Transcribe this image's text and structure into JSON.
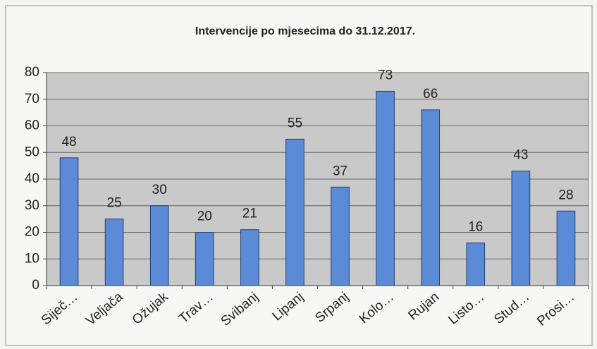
{
  "chart_data": {
    "type": "bar",
    "title": "Intervencije po mjesecima do 31.12.2017.",
    "categories": [
      "Siječ…",
      "Veljača",
      "Ožujak",
      "Trav…",
      "Svibanj",
      "Lipanj",
      "Srpanj",
      "Kolo…",
      "Rujan",
      "Listo…",
      "Stud…",
      "Prosi…"
    ],
    "values": [
      48,
      25,
      30,
      20,
      21,
      55,
      37,
      73,
      66,
      16,
      43,
      28
    ],
    "color": "#5b8ad6",
    "ylim": [
      0,
      80
    ],
    "yticks": [
      0,
      10,
      20,
      30,
      40,
      50,
      60,
      70,
      80
    ],
    "grid": true
  }
}
